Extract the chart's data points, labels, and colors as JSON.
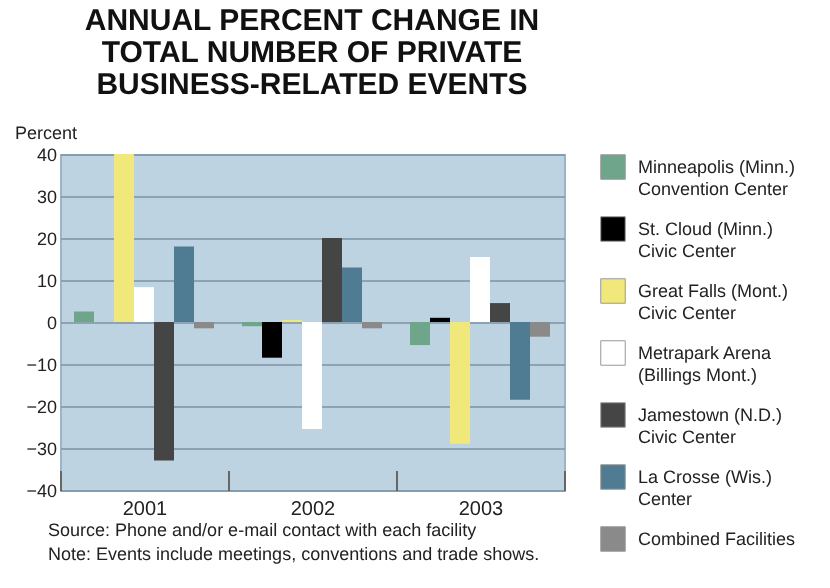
{
  "chart_data": {
    "type": "bar",
    "title": "ANNUAL PERCENT CHANGE IN TOTAL NUMBER OF PRIVATE BUSINESS-RELATED EVENTS",
    "ylabel": "Percent",
    "categories": [
      "2001",
      "2002",
      "2003"
    ],
    "series": [
      {
        "name": "Minneapolis (Minn.) Convention Center",
        "color": "#6fa58a",
        "values": [
          2.5,
          -1,
          -5.5
        ]
      },
      {
        "name": "St. Cloud (Minn.) Civic Center",
        "color": "#000000",
        "values": [
          null,
          -8.5,
          1
        ]
      },
      {
        "name": "Great Falls (Mont.) Civic Center",
        "color": "#f0e87a",
        "values": [
          40,
          0.5,
          -29
        ]
      },
      {
        "name": "Metrapark Arena (Billings Mont.)",
        "color": "#ffffff",
        "values": [
          8.3,
          -25.5,
          15.5
        ]
      },
      {
        "name": "Jamestown (N.D.) Civic Center",
        "color": "#454545",
        "values": [
          -33,
          20,
          4.5
        ]
      },
      {
        "name": "La Crosse (Wis.) Center",
        "color": "#4f7c93",
        "values": [
          18,
          13,
          -18.5
        ]
      },
      {
        "name": "Combined Facilities",
        "color": "#8a8a8a",
        "values": [
          -1.5,
          -1.5,
          -3.5
        ]
      }
    ],
    "ylim": [
      -40,
      40
    ],
    "yticks": [
      -40,
      -30,
      -20,
      -10,
      0,
      10,
      20,
      30,
      40
    ],
    "grid": "y",
    "legend": "right",
    "annotations": [
      "Source: Phone and/or e-mail contact with each facility",
      "Note: Events include meetings, conventions and trade shows."
    ]
  }
}
